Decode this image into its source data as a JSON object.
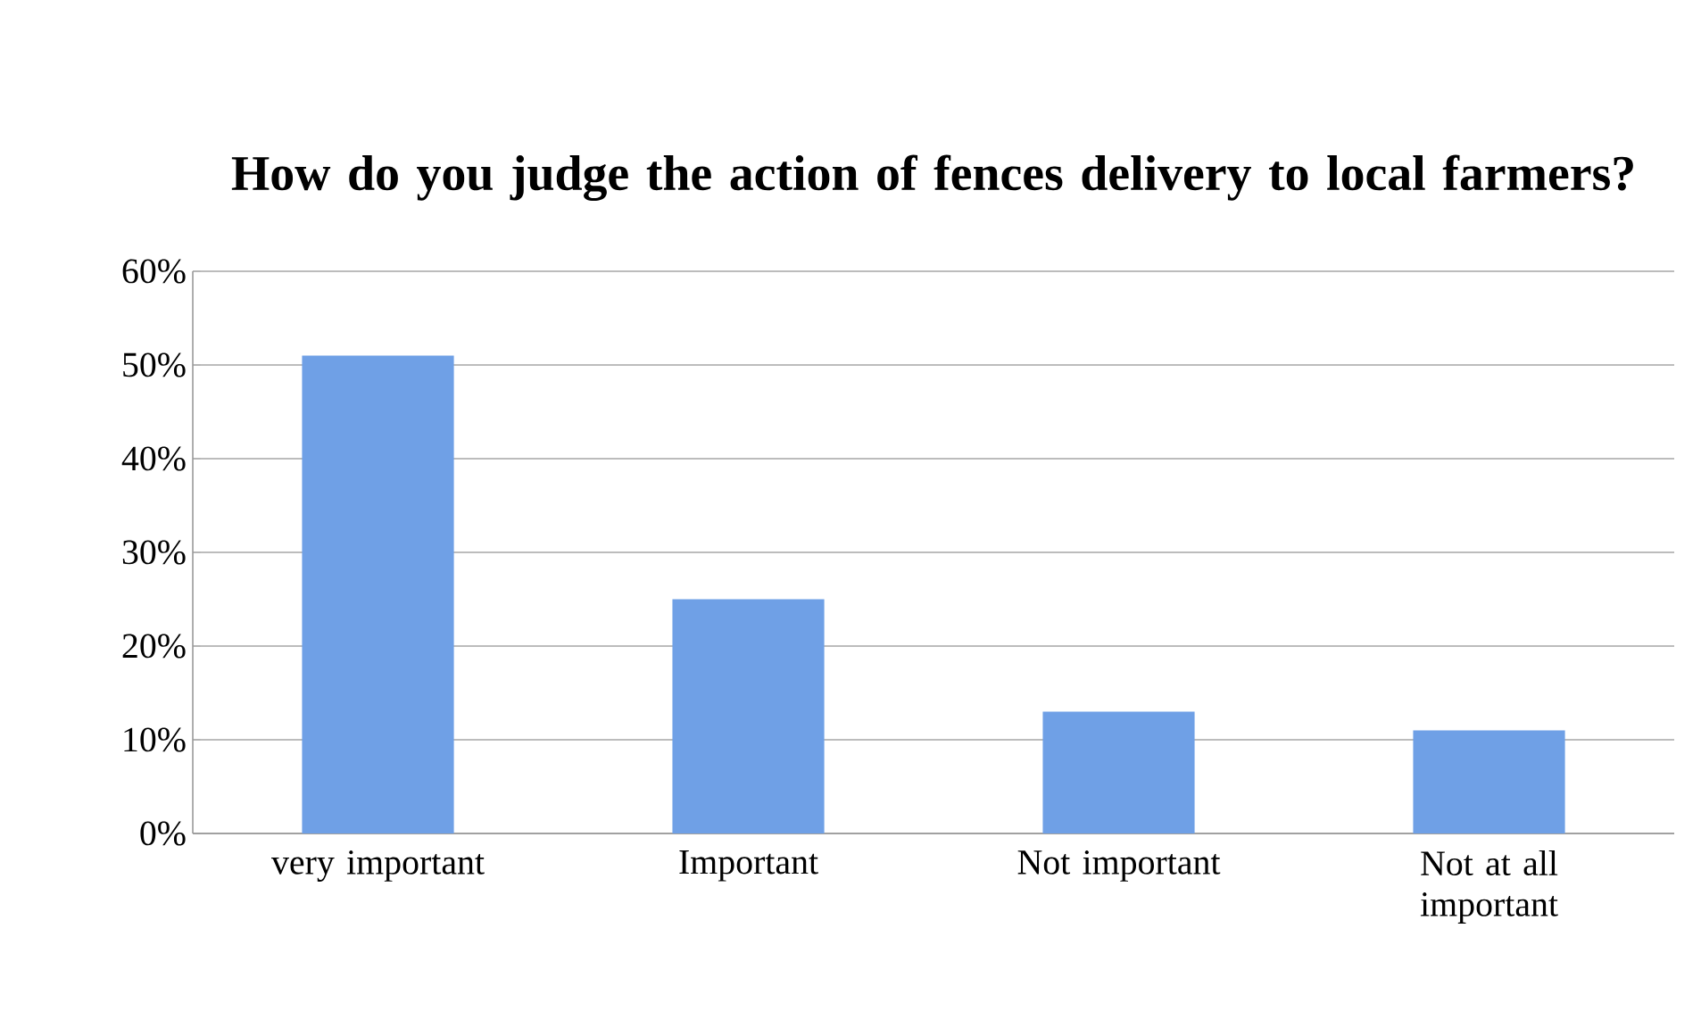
{
  "chart_data": {
    "type": "bar",
    "title": "How do you judge the action of fences delivery to local farmers?",
    "categories": [
      "very important",
      "Important",
      "Not important",
      "Not at all important"
    ],
    "values": [
      51,
      25,
      13,
      11
    ],
    "color": "#6fa0e6",
    "ylim": [
      0,
      60
    ],
    "yticks": [
      {
        "value": 0,
        "label": "0%"
      },
      {
        "value": 10,
        "label": "10%"
      },
      {
        "value": 20,
        "label": "20%"
      },
      {
        "value": 30,
        "label": "30%"
      },
      {
        "value": 40,
        "label": "40%"
      },
      {
        "value": 50,
        "label": "50%"
      },
      {
        "value": 60,
        "label": "60%"
      }
    ],
    "grid": "y"
  }
}
